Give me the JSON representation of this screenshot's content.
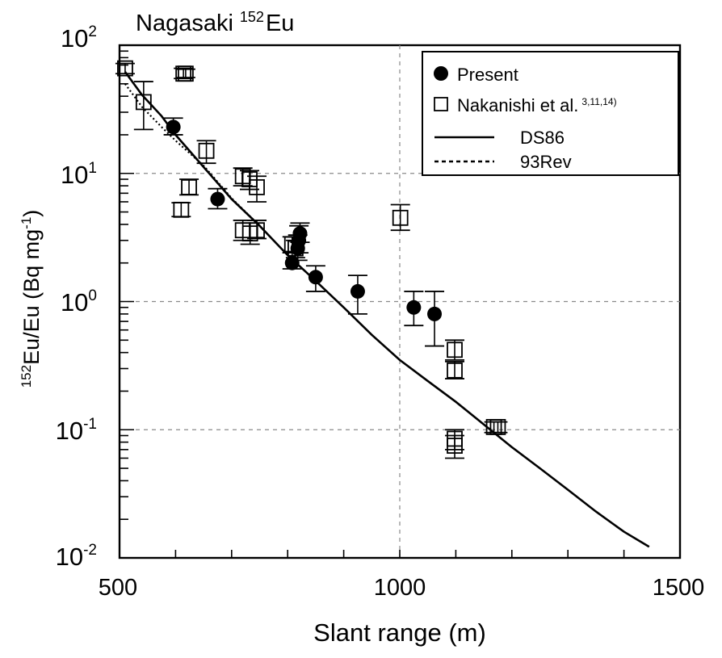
{
  "chart_data": {
    "type": "scatter",
    "title_prefix": "Nagasaki",
    "title_sup": "152",
    "title_suffix": "Eu",
    "xlabel": "Slant range (m)",
    "ylabel": "Eu/Eu (Bq mg",
    "ylabel_sup": "152",
    "ylabel_exp": "-1",
    "ylabel_close": ")",
    "xlim": [
      500,
      1500
    ],
    "ylim": [
      0.01,
      100
    ],
    "yscale": "log",
    "grid": true,
    "legend_position": "top-right",
    "x_ticks": [
      "500",
      "1000",
      "1500"
    ],
    "y_ticks": [
      {
        "base": "10",
        "exp": "-2"
      },
      {
        "base": "10",
        "exp": "-1"
      },
      {
        "base": "10",
        "exp": "0"
      },
      {
        "base": "10",
        "exp": "1"
      },
      {
        "base": "10",
        "exp": "2"
      }
    ],
    "legend": {
      "present": "Present",
      "nakanishi": "Nakanishi et al.",
      "nakanishi_sup": "3,11,14)",
      "ds86": "DS86",
      "rev93": "93Rev"
    },
    "series": [
      {
        "name": "Present",
        "marker": "filled-circle",
        "points": [
          {
            "x": 596,
            "y": 23,
            "lo": 20,
            "hi": 27
          },
          {
            "x": 675,
            "y": 6.3,
            "lo": 5.3,
            "hi": 7.6
          },
          {
            "x": 808,
            "y": 2.0,
            "lo": 1.8,
            "hi": 2.4
          },
          {
            "x": 818,
            "y": 2.6,
            "lo": 2.1,
            "hi": 3.3
          },
          {
            "x": 820,
            "y": 3.0,
            "lo": 2.4,
            "hi": 3.9
          },
          {
            "x": 822,
            "y": 3.4,
            "lo": 2.9,
            "hi": 4.1
          },
          {
            "x": 850,
            "y": 1.55,
            "lo": 1.2,
            "hi": 1.9
          },
          {
            "x": 925,
            "y": 1.2,
            "lo": 0.8,
            "hi": 1.6
          },
          {
            "x": 1025,
            "y": 0.9,
            "lo": 0.65,
            "hi": 1.2
          },
          {
            "x": 1062,
            "y": 0.8,
            "lo": 0.45,
            "hi": 1.2
          }
        ]
      },
      {
        "name": "Nakanishi et al.",
        "marker": "open-square",
        "points": [
          {
            "x": 510,
            "y": 66,
            "lo": 60,
            "hi": 72
          },
          {
            "x": 543,
            "y": 36,
            "lo": 22,
            "hi": 52
          },
          {
            "x": 614,
            "y": 60,
            "lo": 55,
            "hi": 66
          },
          {
            "x": 618,
            "y": 60,
            "lo": 56,
            "hi": 65
          },
          {
            "x": 610,
            "y": 5.2,
            "lo": 4.6,
            "hi": 5.9
          },
          {
            "x": 624,
            "y": 7.8,
            "lo": 6.8,
            "hi": 9
          },
          {
            "x": 655,
            "y": 15,
            "lo": 12,
            "hi": 18
          },
          {
            "x": 720,
            "y": 9.5,
            "lo": 8,
            "hi": 11
          },
          {
            "x": 732,
            "y": 9.0,
            "lo": 7.5,
            "hi": 10.5
          },
          {
            "x": 720,
            "y": 3.6,
            "lo": 3.0,
            "hi": 4.3
          },
          {
            "x": 733,
            "y": 3.4,
            "lo": 2.8,
            "hi": 4.1
          },
          {
            "x": 745,
            "y": 3.6,
            "lo": 3.1,
            "hi": 4.3
          },
          {
            "x": 745,
            "y": 7.8,
            "lo": 6.0,
            "hi": 9.5
          },
          {
            "x": 808,
            "y": 2.8,
            "lo": 2.4,
            "hi": 3.2
          },
          {
            "x": 814,
            "y": 2.6,
            "lo": 2.2,
            "hi": 3.0
          },
          {
            "x": 1001,
            "y": 4.5,
            "lo": 3.6,
            "hi": 5.7
          },
          {
            "x": 1098,
            "y": 0.42,
            "lo": 0.35,
            "hi": 0.5
          },
          {
            "x": 1098,
            "y": 0.29,
            "lo": 0.25,
            "hi": 0.34
          },
          {
            "x": 1098,
            "y": 0.085,
            "lo": 0.07,
            "hi": 0.1
          },
          {
            "x": 1098,
            "y": 0.075,
            "lo": 0.06,
            "hi": 0.09
          },
          {
            "x": 1168,
            "y": 0.105,
            "lo": 0.095,
            "hi": 0.115
          },
          {
            "x": 1175,
            "y": 0.105,
            "lo": 0.095,
            "hi": 0.115
          }
        ]
      },
      {
        "name": "DS86",
        "line": "solid",
        "x": [
          510,
          540,
          575,
          600,
          650,
          700,
          750,
          800,
          850,
          900,
          950,
          1000,
          1050,
          1100,
          1150,
          1200,
          1250,
          1300,
          1350,
          1400,
          1445
        ],
        "y": [
          62,
          41,
          28,
          20,
          11.2,
          6.3,
          3.9,
          2.3,
          1.45,
          0.9,
          0.55,
          0.35,
          0.24,
          0.165,
          0.11,
          0.073,
          0.05,
          0.034,
          0.023,
          0.016,
          0.0122
        ]
      },
      {
        "name": "93Rev",
        "line": "dotted",
        "x": [
          510,
          540,
          575,
          600,
          650,
          700,
          750
        ],
        "y": [
          50,
          33,
          23,
          18,
          11.5,
          6.4,
          3.9
        ]
      }
    ]
  },
  "colors": {
    "ink": "#000000",
    "grid": "#8a8a8a",
    "background": "#ffffff"
  }
}
